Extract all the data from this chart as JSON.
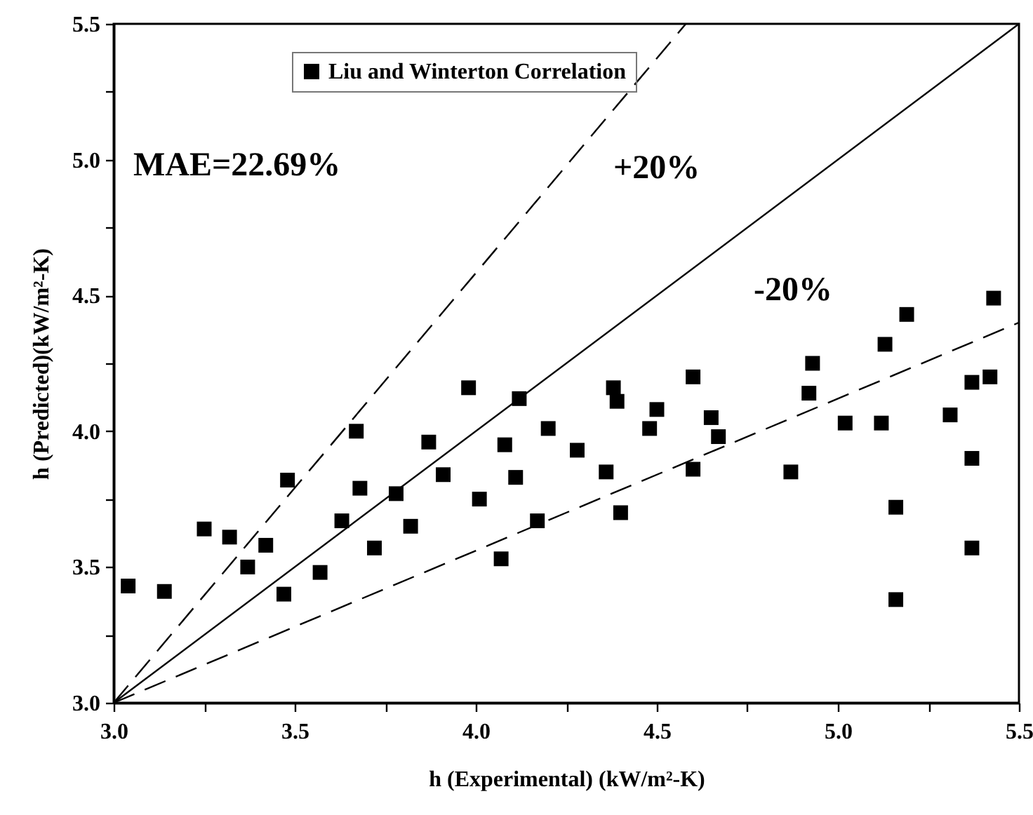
{
  "chart_data": {
    "type": "scatter",
    "xlabel": "h (Experimental) (kW/m²-K)",
    "ylabel": "h (Predicted)(kW/m²-K)",
    "annotations": [
      "MAE=22.69%",
      "+20%",
      "-20%"
    ],
    "xlim": [
      3,
      5.5
    ],
    "ylim": [
      3,
      5.5
    ],
    "xticks": [
      {
        "value": 3,
        "label": "3.0"
      },
      {
        "value": 3.25,
        "label": null
      },
      {
        "value": 3.5,
        "label": "3.5"
      },
      {
        "value": 3.75,
        "label": null
      },
      {
        "value": 4,
        "label": "4.0"
      },
      {
        "value": 4.25,
        "label": null
      },
      {
        "value": 4.5,
        "label": "4.5"
      },
      {
        "value": 4.75,
        "label": null
      },
      {
        "value": 5,
        "label": "5.0"
      },
      {
        "value": 5.25,
        "label": null
      },
      {
        "value": 5.5,
        "label": "5.5"
      }
    ],
    "yticks": [
      {
        "value": 3,
        "label": "3.0"
      },
      {
        "value": 3.25,
        "label": null
      },
      {
        "value": 3.5,
        "label": "3.5"
      },
      {
        "value": 3.75,
        "label": null
      },
      {
        "value": 4,
        "label": "4.0"
      },
      {
        "value": 4.25,
        "label": null
      },
      {
        "value": 4.5,
        "label": "4.5"
      },
      {
        "value": 4.75,
        "label": null
      },
      {
        "value": 5,
        "label": "5.0"
      },
      {
        "value": 5.25,
        "label": null
      },
      {
        "value": 5.5,
        "label": "5.5"
      }
    ],
    "legend": "top",
    "series": [
      {
        "name": "Liu and Winterton Correlation",
        "color": "#000000",
        "marker": "square",
        "x": [
          3.04,
          3.14,
          3.25,
          3.32,
          3.37,
          3.42,
          3.47,
          3.48,
          3.57,
          3.63,
          3.67,
          3.68,
          3.72,
          3.78,
          3.82,
          3.87,
          3.91,
          3.98,
          4.01,
          4.07,
          4.08,
          4.11,
          4.12,
          4.17,
          4.2,
          4.28,
          4.36,
          4.38,
          4.39,
          4.4,
          4.48,
          4.5,
          4.6,
          4.6,
          4.65,
          4.67,
          4.87,
          4.92,
          4.93,
          5.02,
          5.12,
          5.13,
          5.16,
          5.16,
          5.19,
          5.31,
          5.37,
          5.37,
          5.37,
          5.42,
          5.43
        ],
        "values": [
          3.43,
          3.41,
          3.64,
          3.61,
          3.5,
          3.58,
          3.4,
          3.82,
          3.48,
          3.67,
          4.0,
          3.79,
          3.57,
          3.77,
          3.65,
          3.96,
          3.84,
          4.16,
          3.75,
          3.53,
          3.95,
          3.83,
          4.12,
          3.67,
          4.01,
          3.93,
          3.85,
          4.16,
          4.11,
          3.7,
          4.01,
          4.08,
          3.86,
          4.2,
          4.05,
          3.98,
          3.85,
          4.14,
          4.25,
          4.03,
          4.03,
          4.32,
          3.72,
          3.38,
          4.43,
          4.06,
          3.9,
          3.57,
          4.18,
          4.2,
          4.49
        ]
      },
      {
        "type": "line",
        "color": "#000000",
        "line_style": "dashed",
        "marker": "none",
        "x": [
          3,
          4.58
        ],
        "values": [
          3,
          5.5
        ]
      },
      {
        "type": "line",
        "color": "#000000",
        "line_style": "solid",
        "marker": "none",
        "x": [
          3,
          5.5
        ],
        "values": [
          3,
          5.5
        ]
      },
      {
        "type": "line",
        "color": "#000000",
        "line_style": "dashed",
        "marker": "none",
        "x": [
          3,
          5.5
        ],
        "values": [
          3,
          4.4
        ]
      }
    ]
  }
}
